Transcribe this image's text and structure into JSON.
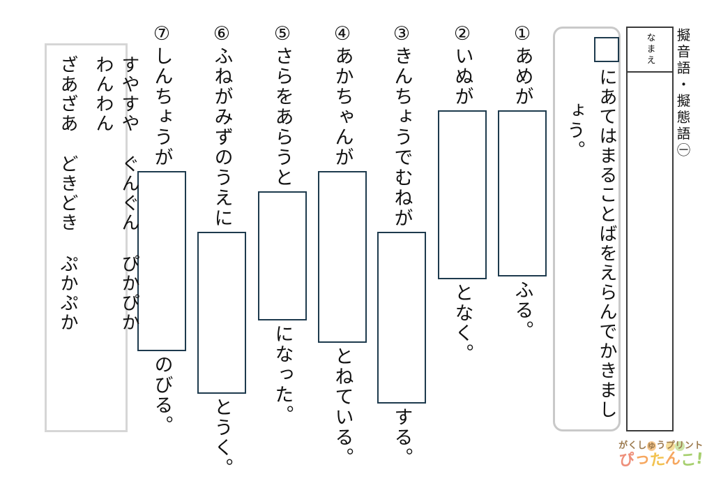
{
  "header": {
    "title": "擬音語・擬態語㊀",
    "name_label": "なまえ"
  },
  "instruction": {
    "line1": "にあてはまることばをえらんでかきまし",
    "line2": "ょう。"
  },
  "items": [
    {
      "pre": "①あめが",
      "post": "ふる。"
    },
    {
      "pre": "②いぬが",
      "post": "となく。"
    },
    {
      "pre": "③きんちょうでむねが",
      "post": "する。"
    },
    {
      "pre": "④あかちゃんが",
      "post": "とねている。"
    },
    {
      "pre": "⑤さらをあらうと",
      "post": "になった。"
    },
    {
      "pre": "⑥ふねがみずのうえに",
      "post": "とうく。"
    },
    {
      "pre": "⑦しんちょうが",
      "post": "のびる。"
    }
  ],
  "word_bank": {
    "column1": [
      "すやすや",
      "ぐんぐん",
      "ぴかぴか",
      "わんわん"
    ],
    "column2": [
      "ざあざあ",
      "どきどき",
      "ぷかぷか"
    ]
  },
  "logo": {
    "line1_chars": [
      {
        "ch": "が"
      },
      {
        "ch": "く"
      },
      {
        "ch": "し"
      },
      {
        "ch": "ゅ",
        "blob": "#f8c98f"
      },
      {
        "ch": "う"
      },
      {
        "ch": "プ",
        "blob": "#f6dd9a"
      },
      {
        "ch": "リ",
        "blob": "#cde6a9"
      },
      {
        "ch": "ン"
      },
      {
        "ch": "ト"
      }
    ],
    "line2_chars": [
      {
        "ch": "ぴ",
        "color": "#ee8f7a"
      },
      {
        "ch": "っ",
        "color": "#f6a75f"
      },
      {
        "ch": "た",
        "color": "#f2c24e"
      },
      {
        "ch": "ん",
        "color": "#f6a75f"
      },
      {
        "ch": "こ",
        "color": "#a6cf6e"
      },
      {
        "ch": "!",
        "color": "#a6cf6e"
      }
    ]
  },
  "colors": {
    "box_border": "#1d3a4d",
    "frame_gray": "#c9c9c9",
    "wordbank_gray": "#d6d6d6",
    "name_border": "#3a3a3a",
    "logo_brown": "#9c7a4e"
  }
}
